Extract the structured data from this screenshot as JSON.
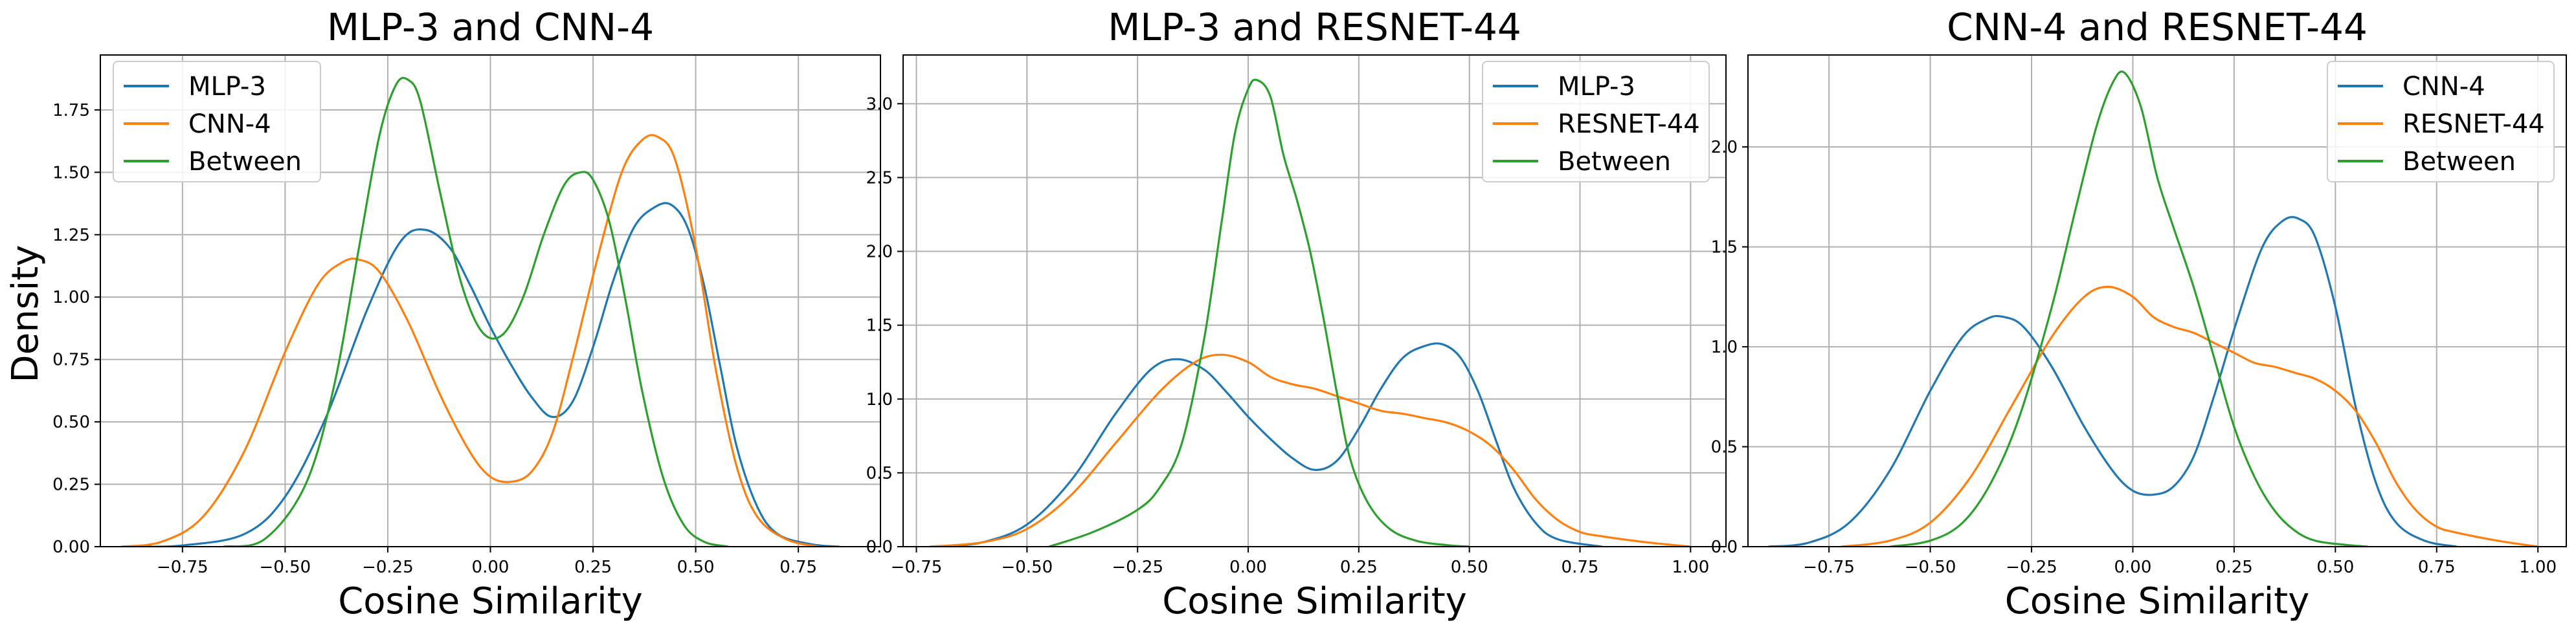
{
  "figure": {
    "ylabel": "Density"
  },
  "chart_data": [
    {
      "type": "line",
      "title": "MLP-3 and CNN-4",
      "xlabel": "Cosine Similarity",
      "ylabel": "Density",
      "xlim": [
        -0.95,
        0.95
      ],
      "ylim": [
        0,
        1.97
      ],
      "xticks": [
        -0.75,
        -0.5,
        -0.25,
        0.0,
        0.25,
        0.5,
        0.75
      ],
      "xtick_labels": [
        "−0.75",
        "−0.50",
        "−0.25",
        "0.00",
        "0.25",
        "0.50",
        "0.75"
      ],
      "yticks": [
        0,
        0.25,
        0.5,
        0.75,
        1.0,
        1.25,
        1.5,
        1.75
      ],
      "ytick_labels": [
        "0.00",
        "0.25",
        "0.50",
        "0.75",
        "1.00",
        "1.25",
        "1.50",
        "1.75"
      ],
      "grid": true,
      "legend_position": "top-left",
      "series": [
        {
          "name": "MLP-3",
          "color": "#1f77b4",
          "x": [
            -0.85,
            -0.75,
            -0.6,
            -0.5,
            -0.4,
            -0.3,
            -0.22,
            -0.16,
            -0.1,
            -0.05,
            0.0,
            0.05,
            0.1,
            0.15,
            0.2,
            0.25,
            0.3,
            0.35,
            0.4,
            0.44,
            0.48,
            0.52,
            0.56,
            0.6,
            0.65,
            0.7,
            0.78,
            0.85
          ],
          "y": [
            0.0,
            0.005,
            0.05,
            0.2,
            0.52,
            0.95,
            1.22,
            1.27,
            1.2,
            1.05,
            0.88,
            0.73,
            0.6,
            0.52,
            0.58,
            0.8,
            1.07,
            1.28,
            1.36,
            1.37,
            1.28,
            1.05,
            0.72,
            0.4,
            0.16,
            0.05,
            0.01,
            0.0
          ]
        },
        {
          "name": "CNN-4",
          "color": "#ff7f0e",
          "x": [
            -0.9,
            -0.8,
            -0.7,
            -0.6,
            -0.5,
            -0.42,
            -0.36,
            -0.32,
            -0.27,
            -0.2,
            -0.12,
            -0.05,
            0.0,
            0.05,
            0.1,
            0.15,
            0.2,
            0.26,
            0.32,
            0.37,
            0.41,
            0.45,
            0.5,
            0.55,
            0.6,
            0.65,
            0.72,
            0.8
          ],
          "y": [
            0.0,
            0.02,
            0.12,
            0.38,
            0.78,
            1.05,
            1.14,
            1.15,
            1.1,
            0.9,
            0.6,
            0.38,
            0.28,
            0.26,
            0.3,
            0.45,
            0.75,
            1.15,
            1.5,
            1.63,
            1.64,
            1.55,
            1.2,
            0.7,
            0.32,
            0.12,
            0.03,
            0.0
          ]
        },
        {
          "name": "Between",
          "color": "#2ca02c",
          "x": [
            -0.65,
            -0.55,
            -0.45,
            -0.38,
            -0.32,
            -0.27,
            -0.23,
            -0.2,
            -0.17,
            -0.12,
            -0.07,
            -0.02,
            0.03,
            0.08,
            0.13,
            0.18,
            0.22,
            0.25,
            0.29,
            0.33,
            0.37,
            0.42,
            0.47,
            0.52,
            0.58
          ],
          "y": [
            0.0,
            0.03,
            0.25,
            0.65,
            1.2,
            1.65,
            1.85,
            1.87,
            1.78,
            1.4,
            1.05,
            0.86,
            0.85,
            1.0,
            1.25,
            1.45,
            1.5,
            1.47,
            1.3,
            0.98,
            0.62,
            0.28,
            0.09,
            0.02,
            0.0
          ]
        }
      ]
    },
    {
      "type": "line",
      "title": "MLP-3 and RESNET-44",
      "xlabel": "Cosine Similarity",
      "ylabel": "",
      "xlim": [
        -0.78,
        1.08
      ],
      "ylim": [
        0,
        3.33
      ],
      "xticks": [
        -0.75,
        -0.5,
        -0.25,
        0.0,
        0.25,
        0.5,
        0.75,
        1.0
      ],
      "xtick_labels": [
        "−0.75",
        "−0.50",
        "−0.25",
        "0.00",
        "0.25",
        "0.50",
        "0.75",
        "1.00"
      ],
      "yticks": [
        0,
        0.5,
        1.0,
        1.5,
        2.0,
        2.5,
        3.0
      ],
      "ytick_labels": [
        "0.0",
        "0.5",
        "1.0",
        "1.5",
        "2.0",
        "2.5",
        "3.0"
      ],
      "grid": true,
      "legend_position": "top-right",
      "series": [
        {
          "name": "MLP-3",
          "color": "#1f77b4",
          "x": [
            -0.7,
            -0.6,
            -0.5,
            -0.4,
            -0.3,
            -0.22,
            -0.16,
            -0.1,
            -0.05,
            0.0,
            0.05,
            0.1,
            0.15,
            0.2,
            0.25,
            0.3,
            0.35,
            0.4,
            0.44,
            0.48,
            0.52,
            0.56,
            0.6,
            0.65,
            0.7,
            0.8
          ],
          "y": [
            0.0,
            0.03,
            0.15,
            0.45,
            0.9,
            1.2,
            1.27,
            1.2,
            1.05,
            0.88,
            0.73,
            0.6,
            0.52,
            0.58,
            0.8,
            1.07,
            1.28,
            1.36,
            1.37,
            1.28,
            1.05,
            0.72,
            0.4,
            0.16,
            0.05,
            0.0
          ]
        },
        {
          "name": "RESNET-44",
          "color": "#ff7f0e",
          "x": [
            -0.72,
            -0.6,
            -0.5,
            -0.4,
            -0.3,
            -0.2,
            -0.12,
            -0.06,
            0.0,
            0.05,
            0.1,
            0.15,
            0.2,
            0.25,
            0.3,
            0.35,
            0.4,
            0.45,
            0.5,
            0.55,
            0.6,
            0.65,
            0.7,
            0.75,
            0.8,
            0.9,
            1.0
          ],
          "y": [
            0.0,
            0.03,
            0.12,
            0.35,
            0.7,
            1.05,
            1.25,
            1.3,
            1.25,
            1.15,
            1.1,
            1.07,
            1.02,
            0.97,
            0.92,
            0.9,
            0.87,
            0.84,
            0.78,
            0.68,
            0.52,
            0.32,
            0.18,
            0.1,
            0.07,
            0.03,
            0.0
          ]
        },
        {
          "name": "Between",
          "color": "#2ca02c",
          "x": [
            -0.45,
            -0.35,
            -0.25,
            -0.2,
            -0.15,
            -0.1,
            -0.06,
            -0.03,
            0.0,
            0.02,
            0.05,
            0.08,
            0.11,
            0.14,
            0.17,
            0.2,
            0.23,
            0.27,
            0.32,
            0.38,
            0.45,
            0.5
          ],
          "y": [
            0.0,
            0.1,
            0.25,
            0.4,
            0.7,
            1.4,
            2.2,
            2.8,
            3.1,
            3.16,
            3.05,
            2.65,
            2.35,
            2.0,
            1.55,
            1.05,
            0.6,
            0.3,
            0.12,
            0.04,
            0.01,
            0.0
          ]
        }
      ]
    },
    {
      "type": "line",
      "title": "CNN-4 and RESNET-44",
      "xlabel": "Cosine Similarity",
      "ylabel": "",
      "xlim": [
        -0.95,
        1.07
      ],
      "ylim": [
        0,
        2.46
      ],
      "xticks": [
        -0.75,
        -0.5,
        -0.25,
        0.0,
        0.25,
        0.5,
        0.75,
        1.0
      ],
      "xtick_labels": [
        "−0.75",
        "−0.50",
        "−0.25",
        "0.00",
        "0.25",
        "0.50",
        "0.75",
        "1.00"
      ],
      "yticks": [
        0,
        0.5,
        1.0,
        1.5,
        2.0
      ],
      "ytick_labels": [
        "0.0",
        "0.5",
        "1.0",
        "1.5",
        "2.0"
      ],
      "grid": true,
      "legend_position": "top-right",
      "series": [
        {
          "name": "CNN-4",
          "color": "#1f77b4",
          "x": [
            -0.9,
            -0.8,
            -0.7,
            -0.6,
            -0.5,
            -0.42,
            -0.36,
            -0.32,
            -0.27,
            -0.2,
            -0.12,
            -0.05,
            0.0,
            0.05,
            0.1,
            0.15,
            0.2,
            0.26,
            0.32,
            0.37,
            0.41,
            0.45,
            0.5,
            0.55,
            0.6,
            0.65,
            0.72,
            0.8
          ],
          "y": [
            0.0,
            0.02,
            0.12,
            0.38,
            0.78,
            1.05,
            1.14,
            1.15,
            1.1,
            0.9,
            0.6,
            0.38,
            0.28,
            0.26,
            0.3,
            0.45,
            0.75,
            1.15,
            1.5,
            1.63,
            1.64,
            1.55,
            1.2,
            0.7,
            0.32,
            0.12,
            0.03,
            0.0
          ]
        },
        {
          "name": "RESNET-44",
          "color": "#ff7f0e",
          "x": [
            -0.72,
            -0.6,
            -0.5,
            -0.4,
            -0.3,
            -0.2,
            -0.12,
            -0.06,
            0.0,
            0.05,
            0.1,
            0.15,
            0.2,
            0.25,
            0.3,
            0.35,
            0.4,
            0.45,
            0.5,
            0.55,
            0.6,
            0.65,
            0.7,
            0.75,
            0.8,
            0.9,
            1.0
          ],
          "y": [
            0.0,
            0.03,
            0.12,
            0.35,
            0.7,
            1.05,
            1.25,
            1.3,
            1.25,
            1.15,
            1.1,
            1.07,
            1.02,
            0.97,
            0.92,
            0.9,
            0.87,
            0.84,
            0.78,
            0.68,
            0.52,
            0.32,
            0.18,
            0.1,
            0.07,
            0.03,
            0.0
          ]
        },
        {
          "name": "Between",
          "color": "#2ca02c",
          "x": [
            -0.6,
            -0.5,
            -0.42,
            -0.35,
            -0.28,
            -0.2,
            -0.14,
            -0.09,
            -0.05,
            -0.02,
            0.02,
            0.06,
            0.1,
            0.15,
            0.2,
            0.25,
            0.3,
            0.35,
            0.4,
            0.45,
            0.52,
            0.58
          ],
          "y": [
            0.0,
            0.03,
            0.12,
            0.32,
            0.65,
            1.2,
            1.7,
            2.1,
            2.32,
            2.37,
            2.2,
            1.85,
            1.6,
            1.3,
            0.95,
            0.6,
            0.35,
            0.18,
            0.08,
            0.03,
            0.01,
            0.0
          ]
        }
      ]
    }
  ]
}
